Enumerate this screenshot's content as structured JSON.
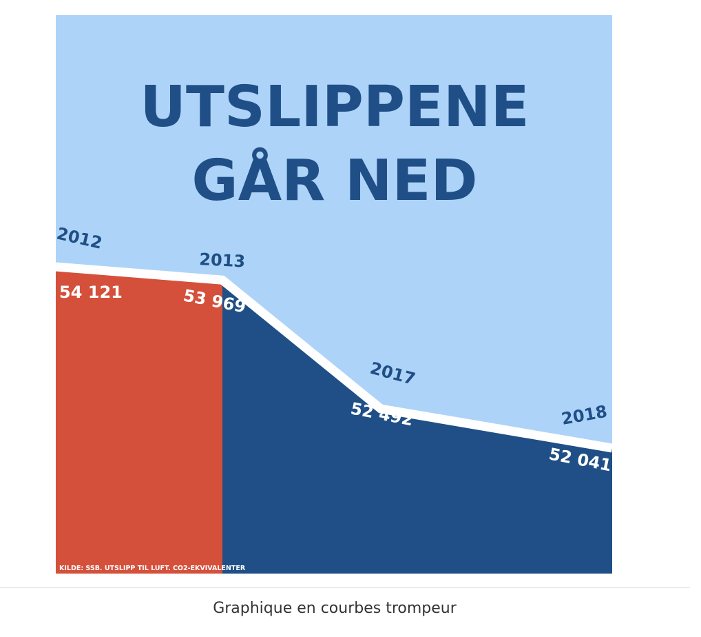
{
  "chart_data": {
    "type": "area",
    "title_lines": [
      "UTSLIPPENE",
      "GÅR NED"
    ],
    "x": [
      "2012",
      "2013",
      "2017",
      "2018"
    ],
    "values": [
      54121,
      53969,
      52492,
      52041
    ],
    "value_labels": [
      "54 121",
      "53 969",
      "52 492",
      "52 041"
    ],
    "highlight": "2012",
    "source": "KILDE: SSB. UTSLIPP TIL LUFT. CO2-EKVIVALENTER",
    "xlabel": "",
    "ylabel": "",
    "grid": false,
    "colors": {
      "background": "#aed3f8",
      "highlight_fill": "#d4503a",
      "area_fill": "#1f4f86",
      "line": "#ffffff",
      "text": "#1f4f86"
    }
  },
  "caption": "Graphique en courbes trompeur"
}
